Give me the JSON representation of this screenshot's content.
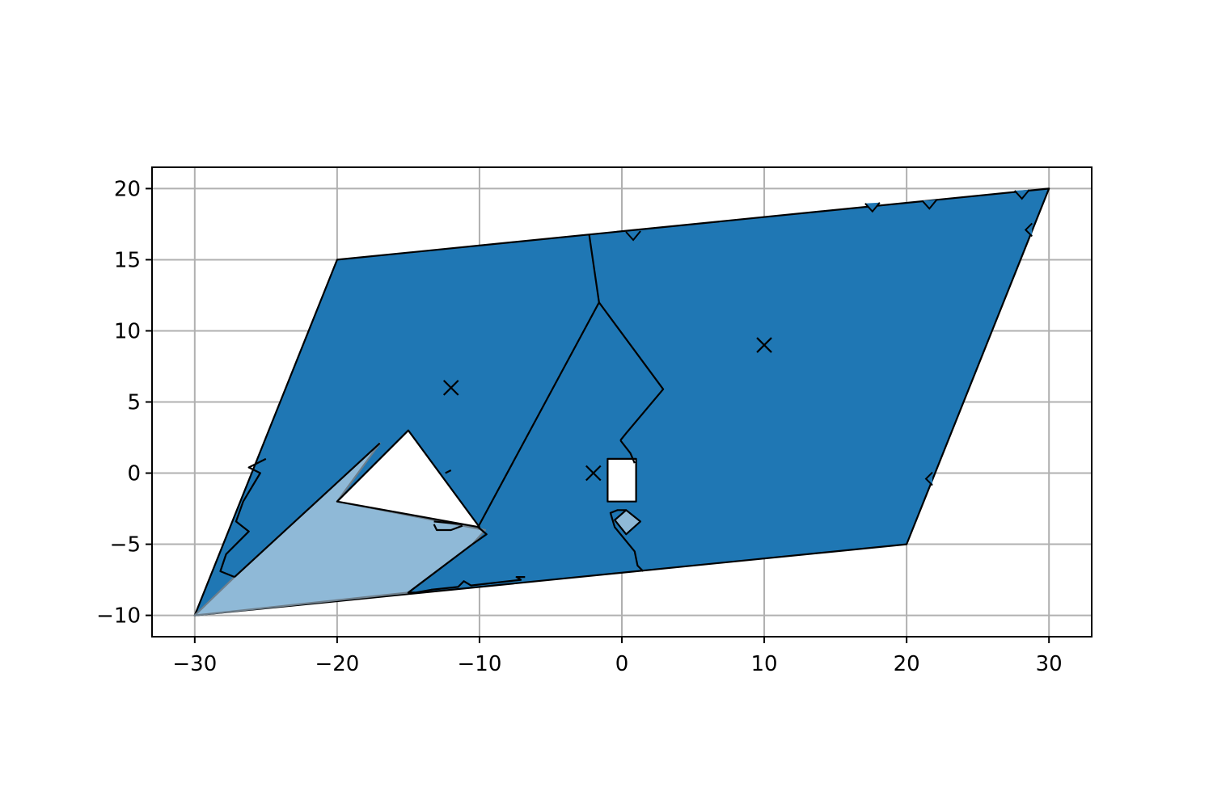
{
  "chart_data": {
    "type": "area",
    "title": "",
    "xlabel": "",
    "ylabel": "",
    "xlim": [
      -33,
      33
    ],
    "ylim": [
      -11.5,
      21.5
    ],
    "grid": true,
    "x_ticks": [
      -30,
      -20,
      -10,
      0,
      10,
      20,
      30
    ],
    "y_ticks": [
      -10,
      -5,
      0,
      5,
      10,
      15,
      20
    ],
    "x_tick_labels": [
      "−30",
      "−20",
      "−10",
      "0",
      "10",
      "20",
      "30"
    ],
    "y_tick_labels": [
      "−10",
      "−5",
      "0",
      "5",
      "10",
      "15",
      "20"
    ],
    "colors": {
      "main_fill": "#1f77b4",
      "light_fill": "#8fb9d7",
      "hole_fill": "#ffffff",
      "edge": "#000000",
      "light_edge": "#6e7f8c",
      "grid": "#b0b0b0"
    },
    "regions": [
      {
        "role": "domain",
        "points": [
          [
            -30,
            -10
          ],
          [
            -20,
            15
          ],
          [
            30,
            20
          ],
          [
            20,
            -5
          ]
        ]
      },
      {
        "role": "light",
        "points": [
          [
            -30,
            -10
          ],
          [
            -27.2,
            -7.3
          ],
          [
            -17,
            2.1
          ],
          [
            -20,
            -2
          ],
          [
            -9.6,
            -4
          ],
          [
            -10.5,
            -5
          ],
          [
            -15,
            -8.4
          ]
        ]
      },
      {
        "role": "hole",
        "points": [
          [
            -20,
            -2
          ],
          [
            -15,
            3
          ],
          [
            -10,
            -3.8
          ]
        ]
      },
      {
        "role": "hole",
        "points": [
          [
            -1,
            -2
          ],
          [
            -1,
            1
          ],
          [
            1,
            1
          ],
          [
            1,
            -2
          ]
        ]
      },
      {
        "role": "light",
        "points": [
          [
            0.3,
            -2.6
          ],
          [
            1.3,
            -3.4
          ],
          [
            0.3,
            -4.3
          ],
          [
            -0.5,
            -3.3
          ]
        ]
      }
    ],
    "boundaries": [
      {
        "points": [
          [
            -27.2,
            -7.3
          ],
          [
            -28.2,
            -6.9
          ],
          [
            -27.8,
            -5.7
          ],
          [
            -26.2,
            -4.1
          ],
          [
            -27.1,
            -3.4
          ],
          [
            -26.6,
            -2.0
          ],
          [
            -25.4,
            0.0
          ],
          [
            -26.2,
            0.4
          ],
          [
            -25.0,
            1.0
          ]
        ]
      },
      {
        "points": [
          [
            -27.2,
            -7.3
          ],
          [
            -17,
            2.1
          ]
        ]
      },
      {
        "points": [
          [
            -10.5,
            -5
          ],
          [
            -15,
            -8.4
          ],
          [
            -14.5,
            -8.4
          ],
          [
            -13.4,
            -8.2
          ],
          [
            -11.5,
            -8.0
          ],
          [
            -11.1,
            -7.6
          ],
          [
            -10.6,
            -7.9
          ],
          [
            -7.1,
            -7.5
          ],
          [
            -7.4,
            -7.3
          ],
          [
            -6.8,
            -7.3
          ]
        ]
      },
      {
        "points": [
          [
            -10.5,
            -5
          ],
          [
            -9.5,
            -4.3
          ],
          [
            -10.1,
            -3.8
          ],
          [
            -1.6,
            12.0
          ],
          [
            -2.3,
            16.8
          ]
        ]
      },
      {
        "points": [
          [
            -1.6,
            12.0
          ],
          [
            2.9,
            5.9
          ],
          [
            0.3,
            2.8
          ],
          [
            -0.1,
            2.3
          ]
        ]
      },
      {
        "points": [
          [
            -0.1,
            2.3
          ],
          [
            0.6,
            1.4
          ],
          [
            0.9,
            0.7
          ]
        ]
      },
      {
        "points": [
          [
            0.3,
            -2.6
          ],
          [
            -0.3,
            -2.6
          ],
          [
            -0.8,
            -2.8
          ],
          [
            -0.5,
            -3.8
          ],
          [
            0.9,
            -5.5
          ],
          [
            1.1,
            -6.5
          ],
          [
            1.5,
            -6.9
          ]
        ]
      },
      {
        "points": [
          [
            -13.2,
            -3.4
          ],
          [
            -11.2,
            -3.6
          ]
        ]
      },
      {
        "points": [
          [
            -13.2,
            -3.6
          ],
          [
            -13.0,
            -4.0
          ],
          [
            -12.0,
            -4.0
          ],
          [
            -11.2,
            -3.7
          ]
        ]
      },
      {
        "points": [
          [
            -12.4,
            0.0
          ],
          [
            -12.0,
            0.2
          ]
        ]
      }
    ],
    "notches_top": [
      {
        "at": [
          0.8,
          16.9
        ]
      },
      {
        "at": [
          17.6,
          18.9
        ]
      },
      {
        "at": [
          21.6,
          19.1
        ]
      },
      {
        "at": [
          28.1,
          19.8
        ]
      }
    ],
    "notches_right": [
      {
        "at": [
          21.7,
          -0.4
        ]
      },
      {
        "at": [
          28.7,
          17.1
        ]
      }
    ],
    "markers": [
      {
        "type": "x",
        "x": -12,
        "y": 6
      },
      {
        "type": "x",
        "x": 10,
        "y": 9
      },
      {
        "type": "x",
        "x": -2,
        "y": 0
      }
    ]
  }
}
